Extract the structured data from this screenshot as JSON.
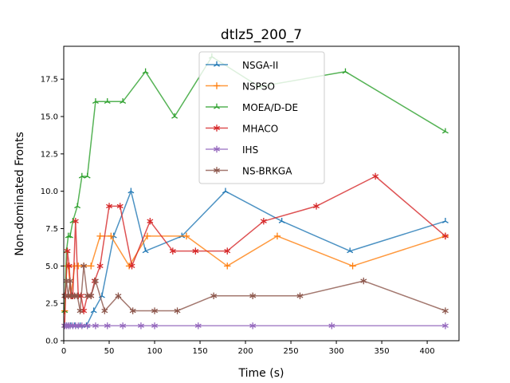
{
  "chart_data": {
    "type": "line",
    "title": "dtlz5_200_7",
    "xlabel": "Time (s)",
    "ylabel": "Non-dominated Fronts",
    "xlim": [
      0,
      435
    ],
    "ylim": [
      0,
      19.7
    ],
    "xticks": [
      0,
      50,
      100,
      150,
      200,
      250,
      300,
      350,
      400
    ],
    "yticks": [
      0.0,
      2.5,
      5.0,
      7.5,
      10.0,
      12.5,
      15.0,
      17.5
    ],
    "ytick_labels": [
      "0.0",
      "2.5",
      "5.0",
      "7.5",
      "10.0",
      "12.5",
      "15.0",
      "17.5"
    ],
    "legend_position": "top-center",
    "grid": false,
    "series": [
      {
        "name": "NSGA-II",
        "color": "#1f77b4",
        "marker": "tri",
        "x": [
          1,
          3,
          5,
          8,
          12,
          18,
          25,
          33,
          42,
          55,
          74,
          90,
          130,
          178,
          240,
          315,
          420
        ],
        "y": [
          1,
          1,
          1,
          1,
          1,
          1,
          1,
          2,
          3,
          7,
          10,
          6,
          7,
          10,
          8,
          6,
          8
        ]
      },
      {
        "name": "NSPSO",
        "color": "#ff7f0e",
        "marker": "plus",
        "x": [
          1,
          3,
          5,
          8,
          12,
          16,
          22,
          30,
          40,
          52,
          72,
          92,
          135,
          180,
          235,
          318,
          420
        ],
        "y": [
          2,
          5,
          5,
          3,
          5,
          5,
          5,
          5,
          7,
          7,
          5,
          7,
          7,
          5,
          7,
          5,
          7
        ]
      },
      {
        "name": "MOEA/D-DE",
        "color": "#2ca02c",
        "marker": "tri",
        "x": [
          1,
          3,
          5,
          7,
          10,
          15,
          20,
          26,
          35,
          48,
          65,
          90,
          122,
          163,
          215,
          310,
          420
        ],
        "y": [
          2,
          6,
          7,
          7,
          8,
          9,
          11,
          11,
          16,
          16,
          16,
          18,
          15,
          19,
          17,
          18,
          14
        ]
      },
      {
        "name": "MHACO",
        "color": "#d62728",
        "marker": "star",
        "x": [
          1,
          2,
          4,
          6,
          8,
          10,
          13,
          16,
          19,
          22,
          26,
          30,
          34,
          40,
          50,
          62,
          75,
          95,
          120,
          145,
          180,
          220,
          278,
          343,
          420
        ],
        "y": [
          1,
          3,
          6,
          5,
          3,
          3,
          8,
          3,
          3,
          2,
          3,
          3,
          4,
          5,
          9,
          9,
          5,
          8,
          6,
          6,
          6,
          8,
          9,
          11,
          7
        ]
      },
      {
        "name": "IHS",
        "color": "#9467bd",
        "marker": "star",
        "x": [
          1,
          3,
          5,
          7,
          10,
          13,
          16,
          20,
          26,
          35,
          48,
          65,
          85,
          100,
          148,
          208,
          295,
          420
        ],
        "y": [
          1,
          1,
          1,
          1,
          1,
          1,
          1,
          1,
          1,
          1,
          1,
          1,
          1,
          1,
          1,
          1,
          1,
          1
        ]
      },
      {
        "name": "NS-BRKGA",
        "color": "#8c564b",
        "marker": "star",
        "x": [
          1,
          3,
          5,
          7,
          9,
          12,
          15,
          18,
          22,
          26,
          30,
          35,
          45,
          60,
          76,
          100,
          125,
          165,
          208,
          260,
          330,
          420
        ],
        "y": [
          3,
          4,
          3,
          4,
          3,
          3,
          3,
          2,
          5,
          3,
          3,
          4,
          2,
          3,
          2,
          2,
          2,
          3,
          3,
          3,
          4,
          2
        ]
      }
    ]
  }
}
